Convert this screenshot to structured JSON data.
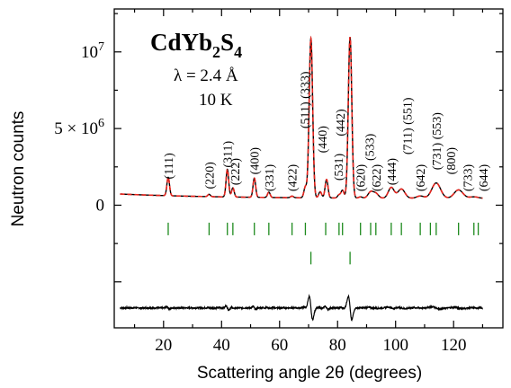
{
  "chart_data": {
    "type": "line",
    "title_main": "CdYb",
    "title_sub": "2",
    "title_rest": "S",
    "title_sub2": "4",
    "annotations": [
      "λ = 2.4 Å",
      "10 K"
    ],
    "xlabel": "Scattering angle 2θ (degrees)",
    "ylabel": "Neutron counts",
    "xlim": [
      3,
      137
    ],
    "ylim": [
      -8000000,
      12800000
    ],
    "x_ticks": [
      20,
      40,
      60,
      80,
      100,
      120
    ],
    "x_tick_labels": [
      "20",
      "40",
      "60",
      "80",
      "100",
      "120"
    ],
    "y_tick_labels": [
      {
        "value": 0,
        "base": "0",
        "exp": ""
      },
      {
        "value": 5000000,
        "base": "5 × 10",
        "exp": "6"
      },
      {
        "value": 10000000,
        "base": "10",
        "exp": "7"
      }
    ],
    "colors": {
      "observed": "#000000",
      "calculated": "#e8251e",
      "bragg": "#1d8a1d",
      "difference": "#000000"
    },
    "baseline": 650000,
    "peaks": [
      {
        "x": 21.6,
        "h": 1200000,
        "w": 0.45
      },
      {
        "x": 35.7,
        "h": 150000,
        "w": 0.45
      },
      {
        "x": 42.0,
        "h": 1800000,
        "w": 0.45
      },
      {
        "x": 43.9,
        "h": 600000,
        "w": 0.45
      },
      {
        "x": 51.3,
        "h": 1250000,
        "w": 0.45
      },
      {
        "x": 56.3,
        "h": 350000,
        "w": 0.45
      },
      {
        "x": 64.3,
        "h": 100000,
        "w": 0.5
      },
      {
        "x": 68.9,
        "h": 700000,
        "w": 0.5
      },
      {
        "x": 70.8,
        "h": 10400000,
        "w": 0.6
      },
      {
        "x": 74.0,
        "h": 400000,
        "w": 0.5
      },
      {
        "x": 76.2,
        "h": 1200000,
        "w": 0.5
      },
      {
        "x": 80.5,
        "h": 200000,
        "w": 0.5
      },
      {
        "x": 81.7,
        "h": 500000,
        "w": 0.5
      },
      {
        "x": 84.3,
        "h": 10500000,
        "w": 0.6
      },
      {
        "x": 87.9,
        "h": 80000,
        "w": 0.6
      },
      {
        "x": 91.4,
        "h": 400000,
        "w": 0.9
      },
      {
        "x": 93.2,
        "h": 300000,
        "w": 0.9
      },
      {
        "x": 98.5,
        "h": 700000,
        "w": 1.0
      },
      {
        "x": 102.0,
        "h": 600000,
        "w": 1.2
      },
      {
        "x": 108.5,
        "h": 150000,
        "w": 1.2
      },
      {
        "x": 114.0,
        "h": 1000000,
        "w": 1.5
      },
      {
        "x": 121.7,
        "h": 550000,
        "w": 1.5
      },
      {
        "x": 127.0,
        "h": 100000,
        "w": 1.5
      }
    ],
    "bragg_row1": [
      21.6,
      35.7,
      42.0,
      43.9,
      51.3,
      56.3,
      64.3,
      68.9,
      75.9,
      80.5,
      81.7,
      87.9,
      91.4,
      93.2,
      98.5,
      102.0,
      108.5,
      112.0,
      114.0,
      121.7,
      127.0,
      128.5
    ],
    "bragg_row2": [
      70.8,
      84.3
    ],
    "bragg_row1_y": -1550000,
    "bragg_row2_y": -3450000,
    "difference_level": -6700000,
    "hkl_labels": [
      {
        "text": "(111)",
        "x": 21.6,
        "y": 1700000
      },
      {
        "text": "(220)",
        "x": 35.7,
        "y": 1050000
      },
      {
        "text": "(311)",
        "x": 42.0,
        "y": 2450000
      },
      {
        "text": "(222)",
        "x": 44.6,
        "y": 1300000
      },
      {
        "text": "(400)",
        "x": 51.3,
        "y": 2000000
      },
      {
        "text": "(331)",
        "x": 56.3,
        "y": 900000
      },
      {
        "text": "(422)",
        "x": 64.3,
        "y": 900000
      },
      {
        "text": "(511) (333)",
        "x": 68.6,
        "y": 5000000
      },
      {
        "text": "(440)",
        "x": 74.6,
        "y": 3400000
      },
      {
        "text": "(531)",
        "x": 80.3,
        "y": 1600000
      },
      {
        "text": "(442)",
        "x": 80.8,
        "y": 4500000
      },
      {
        "text": "(620)",
        "x": 87.9,
        "y": 900000
      },
      {
        "text": "(533)",
        "x": 91.0,
        "y": 2900000
      },
      {
        "text": "(622)",
        "x": 93.2,
        "y": 900000
      },
      {
        "text": "(711) (551)",
        "x": 104.0,
        "y": 3300000
      },
      {
        "text": "(444)",
        "x": 98.5,
        "y": 1300000
      },
      {
        "text": "(642)",
        "x": 108.5,
        "y": 900000
      },
      {
        "text": "(731) (553)",
        "x": 114.0,
        "y": 2300000
      },
      {
        "text": "(800)",
        "x": 119.0,
        "y": 2000000
      },
      {
        "text": "(733)",
        "x": 124.8,
        "y": 900000
      },
      {
        "text": "(644)",
        "x": 130.2,
        "y": 900000
      }
    ]
  }
}
